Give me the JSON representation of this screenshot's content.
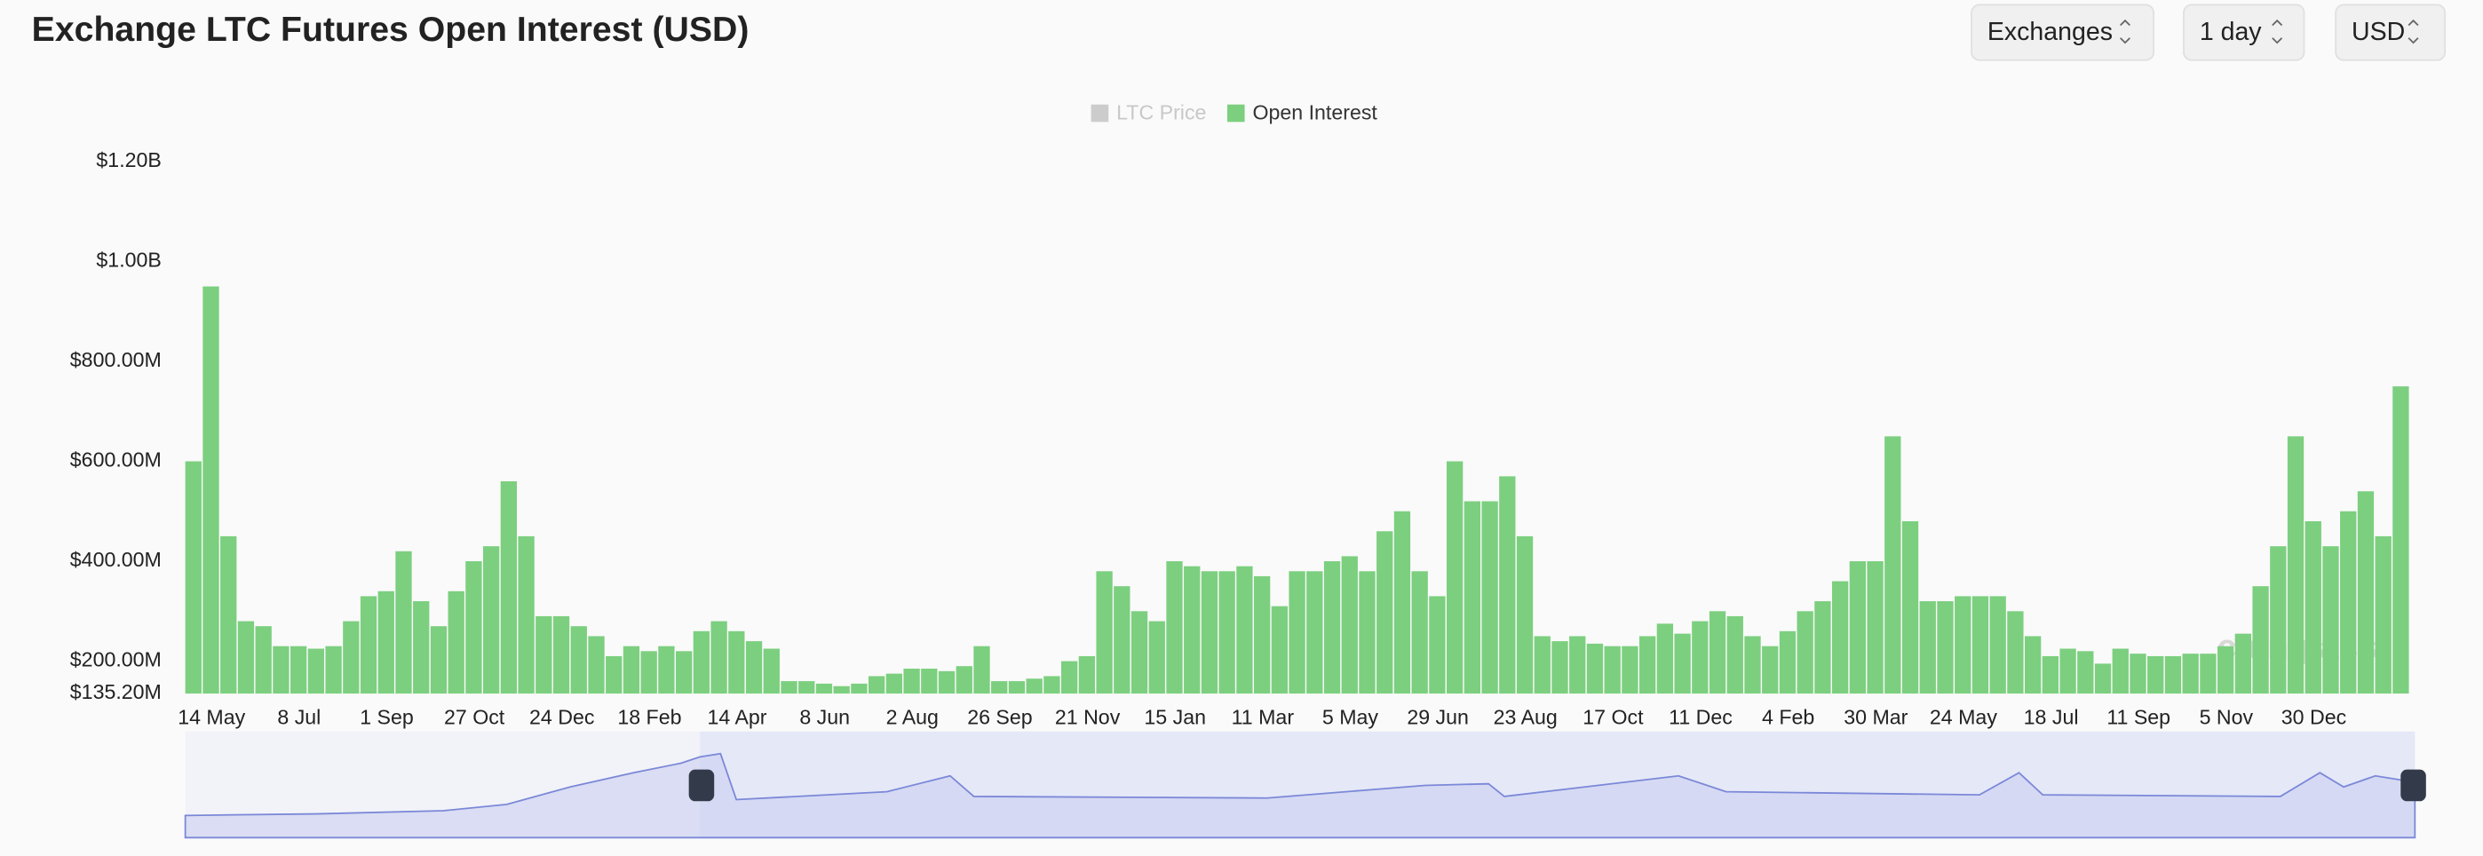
{
  "header": {
    "title": "Exchange LTC Futures Open Interest (USD)",
    "controls": [
      "Exchanges",
      "1 day",
      "USD"
    ]
  },
  "watermark": "coinglass",
  "chart_data": {
    "type": "bar",
    "categories": [
      null,
      "14 May",
      null,
      null,
      null,
      null,
      "8 Jul",
      null,
      null,
      null,
      null,
      "1 Sep",
      null,
      null,
      null,
      null,
      "27 Oct",
      null,
      null,
      null,
      null,
      "24 Dec",
      null,
      null,
      null,
      null,
      "18 Feb",
      null,
      null,
      null,
      null,
      "14 Apr",
      null,
      null,
      null,
      null,
      "8 Jun",
      null,
      null,
      null,
      null,
      "2 Aug",
      null,
      null,
      null,
      null,
      "26 Sep",
      null,
      null,
      null,
      null,
      "21 Nov",
      null,
      null,
      null,
      null,
      "15 Jan",
      null,
      null,
      null,
      null,
      "11 Mar",
      null,
      null,
      null,
      null,
      "5 May",
      null,
      null,
      null,
      null,
      "29 Jun",
      null,
      null,
      null,
      null,
      "23 Aug",
      null,
      null,
      null,
      null,
      "17 Oct",
      null,
      null,
      null,
      null,
      "11 Dec",
      null,
      null,
      null,
      null,
      "4 Feb",
      null,
      null,
      null,
      null,
      "30 Mar",
      null,
      null,
      null,
      null,
      "24 May",
      null,
      null,
      null,
      null,
      "18 Jul",
      null,
      null,
      null,
      null,
      "11 Sep",
      null,
      null,
      null,
      null,
      "5 Nov",
      null,
      null,
      null,
      null,
      "30 Dec",
      null,
      null,
      null,
      null,
      null
    ],
    "series": [
      {
        "name": "LTC Price",
        "color": "#cccccc",
        "hidden": true
      },
      {
        "name": "Open Interest",
        "color": "#7ccf7f",
        "values": [
          600000000,
          950000000,
          450000000,
          280000000,
          270000000,
          230000000,
          230000000,
          225000000,
          230000000,
          280000000,
          330000000,
          340000000,
          420000000,
          320000000,
          270000000,
          340000000,
          400000000,
          430000000,
          560000000,
          450000000,
          290000000,
          290000000,
          270000000,
          250000000,
          210000000,
          230000000,
          220000000,
          230000000,
          220000000,
          260000000,
          280000000,
          260000000,
          240000000,
          225000000,
          160000000,
          160000000,
          155000000,
          150000000,
          155000000,
          170000000,
          175000000,
          185000000,
          185000000,
          180000000,
          190000000,
          230000000,
          160000000,
          160000000,
          165000000,
          170000000,
          200000000,
          210000000,
          380000000,
          350000000,
          300000000,
          280000000,
          400000000,
          390000000,
          380000000,
          380000000,
          390000000,
          370000000,
          310000000,
          380000000,
          380000000,
          400000000,
          410000000,
          380000000,
          460000000,
          500000000,
          380000000,
          330000000,
          600000000,
          520000000,
          520000000,
          570000000,
          450000000,
          250000000,
          240000000,
          250000000,
          235000000,
          230000000,
          230000000,
          250000000,
          275000000,
          255000000,
          280000000,
          300000000,
          290000000,
          250000000,
          230000000,
          260000000,
          300000000,
          320000000,
          360000000,
          400000000,
          400000000,
          650000000,
          480000000,
          320000000,
          320000000,
          330000000,
          330000000,
          330000000,
          300000000,
          250000000,
          210000000,
          225000000,
          220000000,
          195000000,
          225000000,
          215000000,
          210000000,
          210000000,
          215000000,
          215000000,
          230000000,
          255000000,
          350000000,
          430000000,
          650000000,
          480000000,
          430000000,
          500000000,
          540000000,
          450000000,
          750000000
        ]
      }
    ],
    "ylim": [
      135200000,
      1200000000
    ],
    "yticks": [
      {
        "value": 135200000,
        "label": "$135.20M"
      },
      {
        "value": 200000000,
        "label": "$200.00M"
      },
      {
        "value": 400000000,
        "label": "$400.00M"
      },
      {
        "value": 600000000,
        "label": "$600.00M"
      },
      {
        "value": 800000000,
        "label": "$800.00M"
      },
      {
        "value": 1000000000,
        "label": "$1.00B"
      },
      {
        "value": 1200000000,
        "label": "$1.20B"
      }
    ],
    "grid": false
  }
}
